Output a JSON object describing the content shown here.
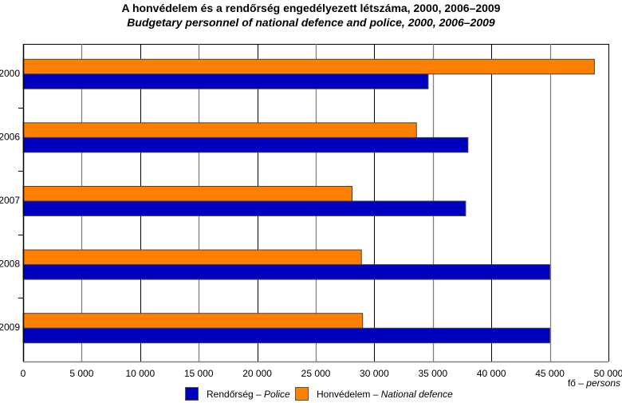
{
  "chart_data": {
    "type": "bar",
    "orientation": "horizontal",
    "title": "A honvédelem és a rendőrség engedélyezett létszáma, 2000, 2006–2009",
    "subtitle": "Budgetary personnel of national defence and police, 2000, 2006–2009",
    "categories": [
      "2000",
      "2006",
      "2007",
      "2008",
      "2009"
    ],
    "series": [
      {
        "name": "Honvédelem – National defence",
        "name_plain": "Honvédelem – ",
        "name_italic": "National defence",
        "color": "#FF8000",
        "values": [
          48800,
          33600,
          28100,
          28900,
          29000
        ]
      },
      {
        "name": "Rendőrség – Police",
        "name_plain": "Rendőrség – ",
        "name_italic": "Police",
        "color": "#0000BF",
        "values": [
          34600,
          38000,
          37800,
          45000,
          45000
        ]
      }
    ],
    "xlabel_plain": "fő – ",
    "xlabel_italic": "persons",
    "xlim": [
      0,
      50000
    ],
    "xticks": [
      0,
      5000,
      10000,
      15000,
      20000,
      25000,
      30000,
      35000,
      40000,
      45000,
      50000
    ],
    "xtick_labels": [
      "0",
      "5 000",
      "10 000",
      "15 000",
      "20 000",
      "25 000",
      "30 000",
      "35 000",
      "40 000",
      "45 000",
      "50 000"
    ],
    "grid": true,
    "legend_position": "bottom"
  }
}
